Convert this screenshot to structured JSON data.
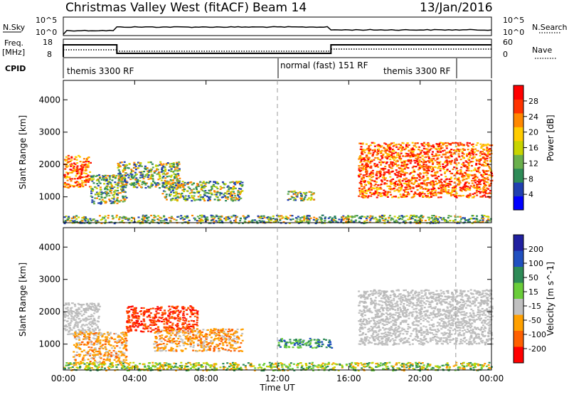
{
  "header": {
    "title": "Christmas Valley West (fitACF)",
    "beam": "Beam 14",
    "date": "13/Jan/2016"
  },
  "top_panels": {
    "nsky_label": "N.Sky",
    "nsearch_label": "N.Search",
    "nsky_ticks": [
      "10^5",
      "10^0"
    ],
    "nsearch_ticks": [
      "10^5",
      "10^0"
    ],
    "freq_label_1": "Freq.",
    "freq_label_2": "[MHz]",
    "freq_ticks": [
      "18",
      "8"
    ],
    "nave_label": "Nave",
    "nave_ticks": [
      "60",
      "0"
    ],
    "cpid_label": "CPID",
    "cpid_segments": [
      {
        "label": "themis 3300 RF",
        "start_hour": 0
      },
      {
        "label": "normal (fast) 151 RF",
        "start_hour": 12
      },
      {
        "label": "themis 3300 RF",
        "start_hour": 22
      }
    ]
  },
  "chart_data": [
    {
      "type": "heatmap",
      "name": "power",
      "ylabel": "Slant Range [km]",
      "yticks": [
        1000,
        2000,
        3000,
        4000
      ],
      "ylim": [
        200,
        4600
      ],
      "xlim_hours": [
        0,
        24
      ],
      "colorbar_label": "Power [dB]",
      "colorbar_ticks": [
        "4",
        "8",
        "12",
        "16",
        "20",
        "24",
        "28"
      ],
      "colorbar_colors": [
        "#0000ff",
        "#2040b0",
        "#2e8b57",
        "#6ab04c",
        "#c8d400",
        "#ffcc00",
        "#ff8800",
        "#ff3300",
        "#ff0000"
      ],
      "regions": [
        {
          "t": [
            0.0,
            1.5
          ],
          "r": [
            1300,
            2300
          ],
          "level": "high"
        },
        {
          "t": [
            1.5,
            3.5
          ],
          "r": [
            800,
            1700
          ],
          "level": "mid"
        },
        {
          "t": [
            3.0,
            6.5
          ],
          "r": [
            1300,
            2100
          ],
          "level": "mid"
        },
        {
          "t": [
            5.5,
            10.0
          ],
          "r": [
            900,
            1500
          ],
          "level": "mid"
        },
        {
          "t": [
            12.5,
            14.0
          ],
          "r": [
            900,
            1200
          ],
          "level": "mid"
        },
        {
          "t": [
            16.5,
            24.0
          ],
          "r": [
            1000,
            2700
          ],
          "level": "high"
        },
        {
          "t": [
            0.0,
            24.0
          ],
          "r": [
            200,
            450
          ],
          "level": "low"
        }
      ]
    },
    {
      "type": "heatmap",
      "name": "velocity",
      "ylabel": "Slant Range [km]",
      "yticks": [
        1000,
        2000,
        3000,
        4000
      ],
      "ylim": [
        200,
        4600
      ],
      "xlim_hours": [
        0,
        24
      ],
      "xlabel": "Time UT",
      "xticks": [
        "00:00",
        "04:00",
        "08:00",
        "12:00",
        "16:00",
        "20:00",
        "00:00"
      ],
      "colorbar_label": "Velocity [m s^-1]",
      "colorbar_ticks": [
        "200",
        "100",
        "50",
        "15",
        "-15",
        "-50",
        "-100",
        "-200"
      ],
      "colorbar_colors": [
        "#2020a0",
        "#2050c0",
        "#2e8b57",
        "#6acd3a",
        "#c0c0c0",
        "#ffa000",
        "#ff6000",
        "#ff0000"
      ],
      "regions": [
        {
          "t": [
            0.0,
            2.0
          ],
          "r": [
            1300,
            2300
          ],
          "level": "neutral"
        },
        {
          "t": [
            0.5,
            3.5
          ],
          "r": [
            400,
            1400
          ],
          "level": "away"
        },
        {
          "t": [
            3.5,
            7.5
          ],
          "r": [
            1400,
            2200
          ],
          "level": "away-strong"
        },
        {
          "t": [
            5.0,
            10.0
          ],
          "r": [
            800,
            1500
          ],
          "level": "away"
        },
        {
          "t": [
            12.0,
            15.0
          ],
          "r": [
            900,
            1200
          ],
          "level": "toward"
        },
        {
          "t": [
            16.5,
            24.0
          ],
          "r": [
            1000,
            2700
          ],
          "level": "neutral"
        },
        {
          "t": [
            0.0,
            24.0
          ],
          "r": [
            200,
            450
          ],
          "level": "toward-weak"
        }
      ]
    }
  ]
}
